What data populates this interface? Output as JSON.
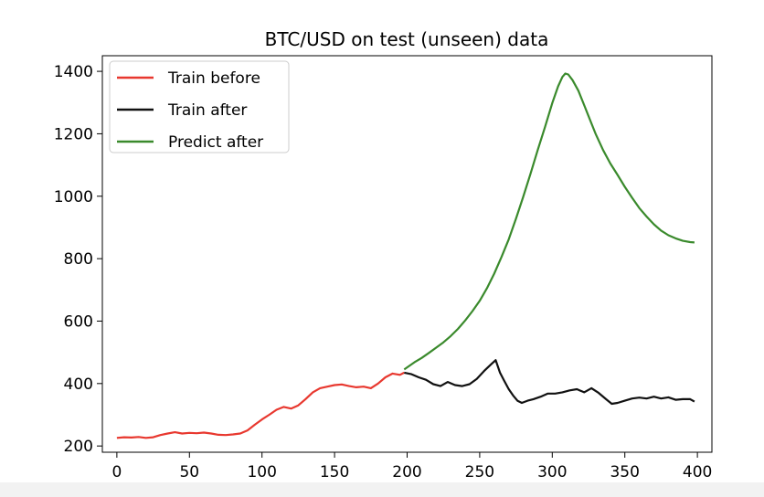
{
  "chart_data": {
    "type": "line",
    "title": "BTC/USD on test (unseen) data",
    "xlabel": "",
    "ylabel": "",
    "xlim": [
      -10,
      410
    ],
    "ylim": [
      180,
      1450
    ],
    "x_ticks": [
      0,
      50,
      100,
      150,
      200,
      250,
      300,
      350,
      400
    ],
    "y_ticks": [
      200,
      400,
      600,
      800,
      1000,
      1200,
      1400
    ],
    "grid": false,
    "legend_position": "top-left",
    "series": [
      {
        "name": "Train before",
        "color": "#e8382f",
        "points": [
          [
            0,
            226
          ],
          [
            5,
            228
          ],
          [
            10,
            227
          ],
          [
            15,
            229
          ],
          [
            20,
            226
          ],
          [
            25,
            228
          ],
          [
            30,
            235
          ],
          [
            35,
            240
          ],
          [
            40,
            244
          ],
          [
            45,
            240
          ],
          [
            50,
            242
          ],
          [
            55,
            241
          ],
          [
            60,
            243
          ],
          [
            65,
            240
          ],
          [
            70,
            236
          ],
          [
            75,
            235
          ],
          [
            80,
            237
          ],
          [
            85,
            240
          ],
          [
            90,
            250
          ],
          [
            95,
            268
          ],
          [
            100,
            285
          ],
          [
            105,
            300
          ],
          [
            110,
            316
          ],
          [
            115,
            325
          ],
          [
            120,
            320
          ],
          [
            125,
            330
          ],
          [
            130,
            350
          ],
          [
            135,
            372
          ],
          [
            140,
            385
          ],
          [
            145,
            390
          ],
          [
            150,
            395
          ],
          [
            155,
            397
          ],
          [
            160,
            392
          ],
          [
            165,
            388
          ],
          [
            170,
            390
          ],
          [
            175,
            385
          ],
          [
            180,
            400
          ],
          [
            185,
            420
          ],
          [
            190,
            432
          ],
          [
            195,
            428
          ],
          [
            198,
            435
          ]
        ]
      },
      {
        "name": "Train after",
        "color": "#111111",
        "points": [
          [
            198,
            435
          ],
          [
            203,
            430
          ],
          [
            208,
            420
          ],
          [
            213,
            412
          ],
          [
            218,
            398
          ],
          [
            223,
            392
          ],
          [
            228,
            405
          ],
          [
            233,
            395
          ],
          [
            238,
            392
          ],
          [
            243,
            398
          ],
          [
            248,
            415
          ],
          [
            253,
            440
          ],
          [
            258,
            462
          ],
          [
            261,
            475
          ],
          [
            264,
            435
          ],
          [
            267,
            408
          ],
          [
            270,
            382
          ],
          [
            273,
            362
          ],
          [
            276,
            345
          ],
          [
            279,
            338
          ],
          [
            283,
            345
          ],
          [
            287,
            350
          ],
          [
            292,
            358
          ],
          [
            297,
            368
          ],
          [
            302,
            368
          ],
          [
            307,
            372
          ],
          [
            312,
            378
          ],
          [
            317,
            382
          ],
          [
            322,
            372
          ],
          [
            327,
            385
          ],
          [
            332,
            370
          ],
          [
            337,
            350
          ],
          [
            341,
            335
          ],
          [
            345,
            338
          ],
          [
            350,
            345
          ],
          [
            355,
            352
          ],
          [
            360,
            355
          ],
          [
            365,
            352
          ],
          [
            370,
            358
          ],
          [
            375,
            352
          ],
          [
            380,
            356
          ],
          [
            385,
            348
          ],
          [
            390,
            350
          ],
          [
            395,
            350
          ],
          [
            398,
            342
          ]
        ]
      },
      {
        "name": "Predict after",
        "color": "#3a8a2c",
        "points": [
          [
            198,
            445
          ],
          [
            205,
            468
          ],
          [
            210,
            482
          ],
          [
            215,
            498
          ],
          [
            220,
            515
          ],
          [
            225,
            532
          ],
          [
            230,
            552
          ],
          [
            235,
            575
          ],
          [
            240,
            602
          ],
          [
            245,
            632
          ],
          [
            250,
            665
          ],
          [
            255,
            705
          ],
          [
            260,
            752
          ],
          [
            265,
            805
          ],
          [
            270,
            862
          ],
          [
            275,
            928
          ],
          [
            280,
            998
          ],
          [
            285,
            1072
          ],
          [
            290,
            1148
          ],
          [
            295,
            1222
          ],
          [
            300,
            1298
          ],
          [
            304,
            1352
          ],
          [
            307,
            1382
          ],
          [
            309,
            1393
          ],
          [
            311,
            1390
          ],
          [
            314,
            1372
          ],
          [
            318,
            1338
          ],
          [
            322,
            1292
          ],
          [
            326,
            1245
          ],
          [
            330,
            1198
          ],
          [
            335,
            1148
          ],
          [
            340,
            1105
          ],
          [
            345,
            1068
          ],
          [
            350,
            1030
          ],
          [
            355,
            995
          ],
          [
            360,
            962
          ],
          [
            365,
            935
          ],
          [
            370,
            910
          ],
          [
            375,
            890
          ],
          [
            380,
            875
          ],
          [
            385,
            865
          ],
          [
            390,
            857
          ],
          [
            395,
            853
          ],
          [
            398,
            852
          ]
        ]
      }
    ]
  }
}
